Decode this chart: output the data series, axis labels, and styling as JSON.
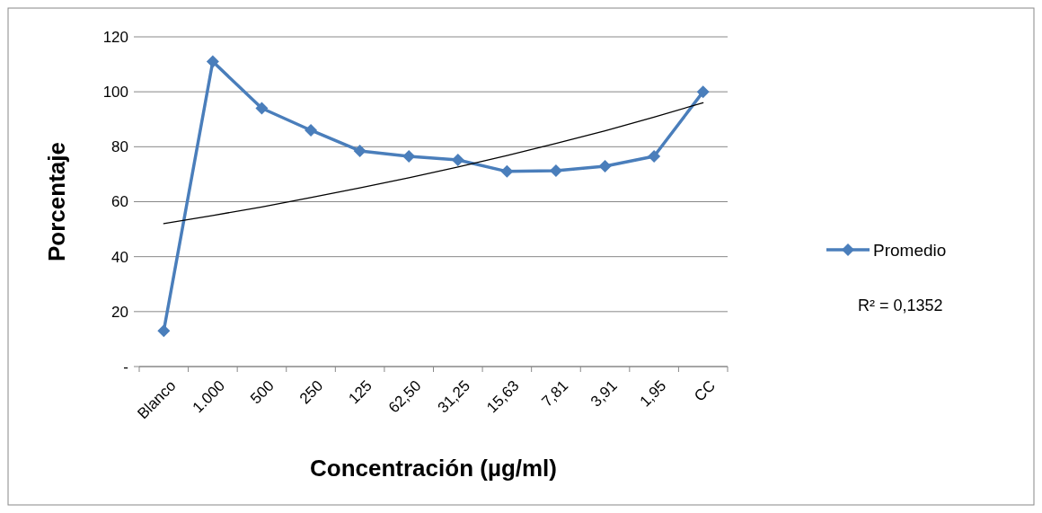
{
  "chart_data": {
    "type": "line",
    "xlabel": "Concentración (µg/ml)",
    "ylabel": "Porcentaje",
    "categories": [
      "Blanco",
      "1.000",
      "500",
      "250",
      "125",
      "62,50",
      "31,25",
      "15,63",
      "7,81",
      "3,91",
      "1,95",
      "CC"
    ],
    "series": [
      {
        "name": "Promedio",
        "color": "#4a7ebb",
        "values": [
          13,
          111,
          94,
          86,
          78.5,
          76.5,
          75.2,
          71,
          71.3,
          72.9,
          76.5,
          100
        ],
        "marker": "diamond"
      },
      {
        "type": "line",
        "color": "#000000",
        "values": [
          52,
          55,
          58.1,
          61.5,
          65,
          68.7,
          72.6,
          76.8,
          81.2,
          85.8,
          90.8,
          96
        ],
        "marker": "none"
      }
    ],
    "ylim": [
      0,
      120
    ],
    "yticks": [
      {
        "value": 0,
        "label": "-"
      },
      20,
      40,
      60,
      80,
      100,
      120
    ],
    "grid": "y",
    "legend": "right",
    "line_style": "solid",
    "annotations": [
      "R² = 0,1352"
    ]
  }
}
